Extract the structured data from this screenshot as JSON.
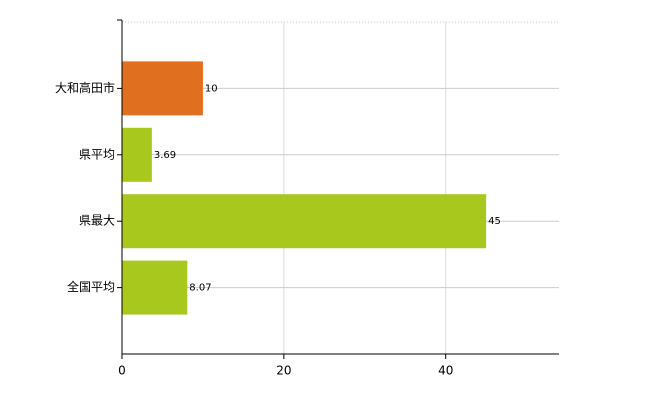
{
  "chart_data": {
    "type": "bar",
    "orientation": "horizontal",
    "categories": [
      "大和高田市",
      "県平均",
      "県最大",
      "全国平均"
    ],
    "values": [
      10,
      3.69,
      45,
      8.07
    ],
    "colors": [
      "#e07020",
      "#a8c81e",
      "#a8c81e",
      "#a8c81e"
    ],
    "xlim": [
      0,
      54
    ],
    "xticks": [
      0,
      20,
      40
    ],
    "grid": true
  }
}
